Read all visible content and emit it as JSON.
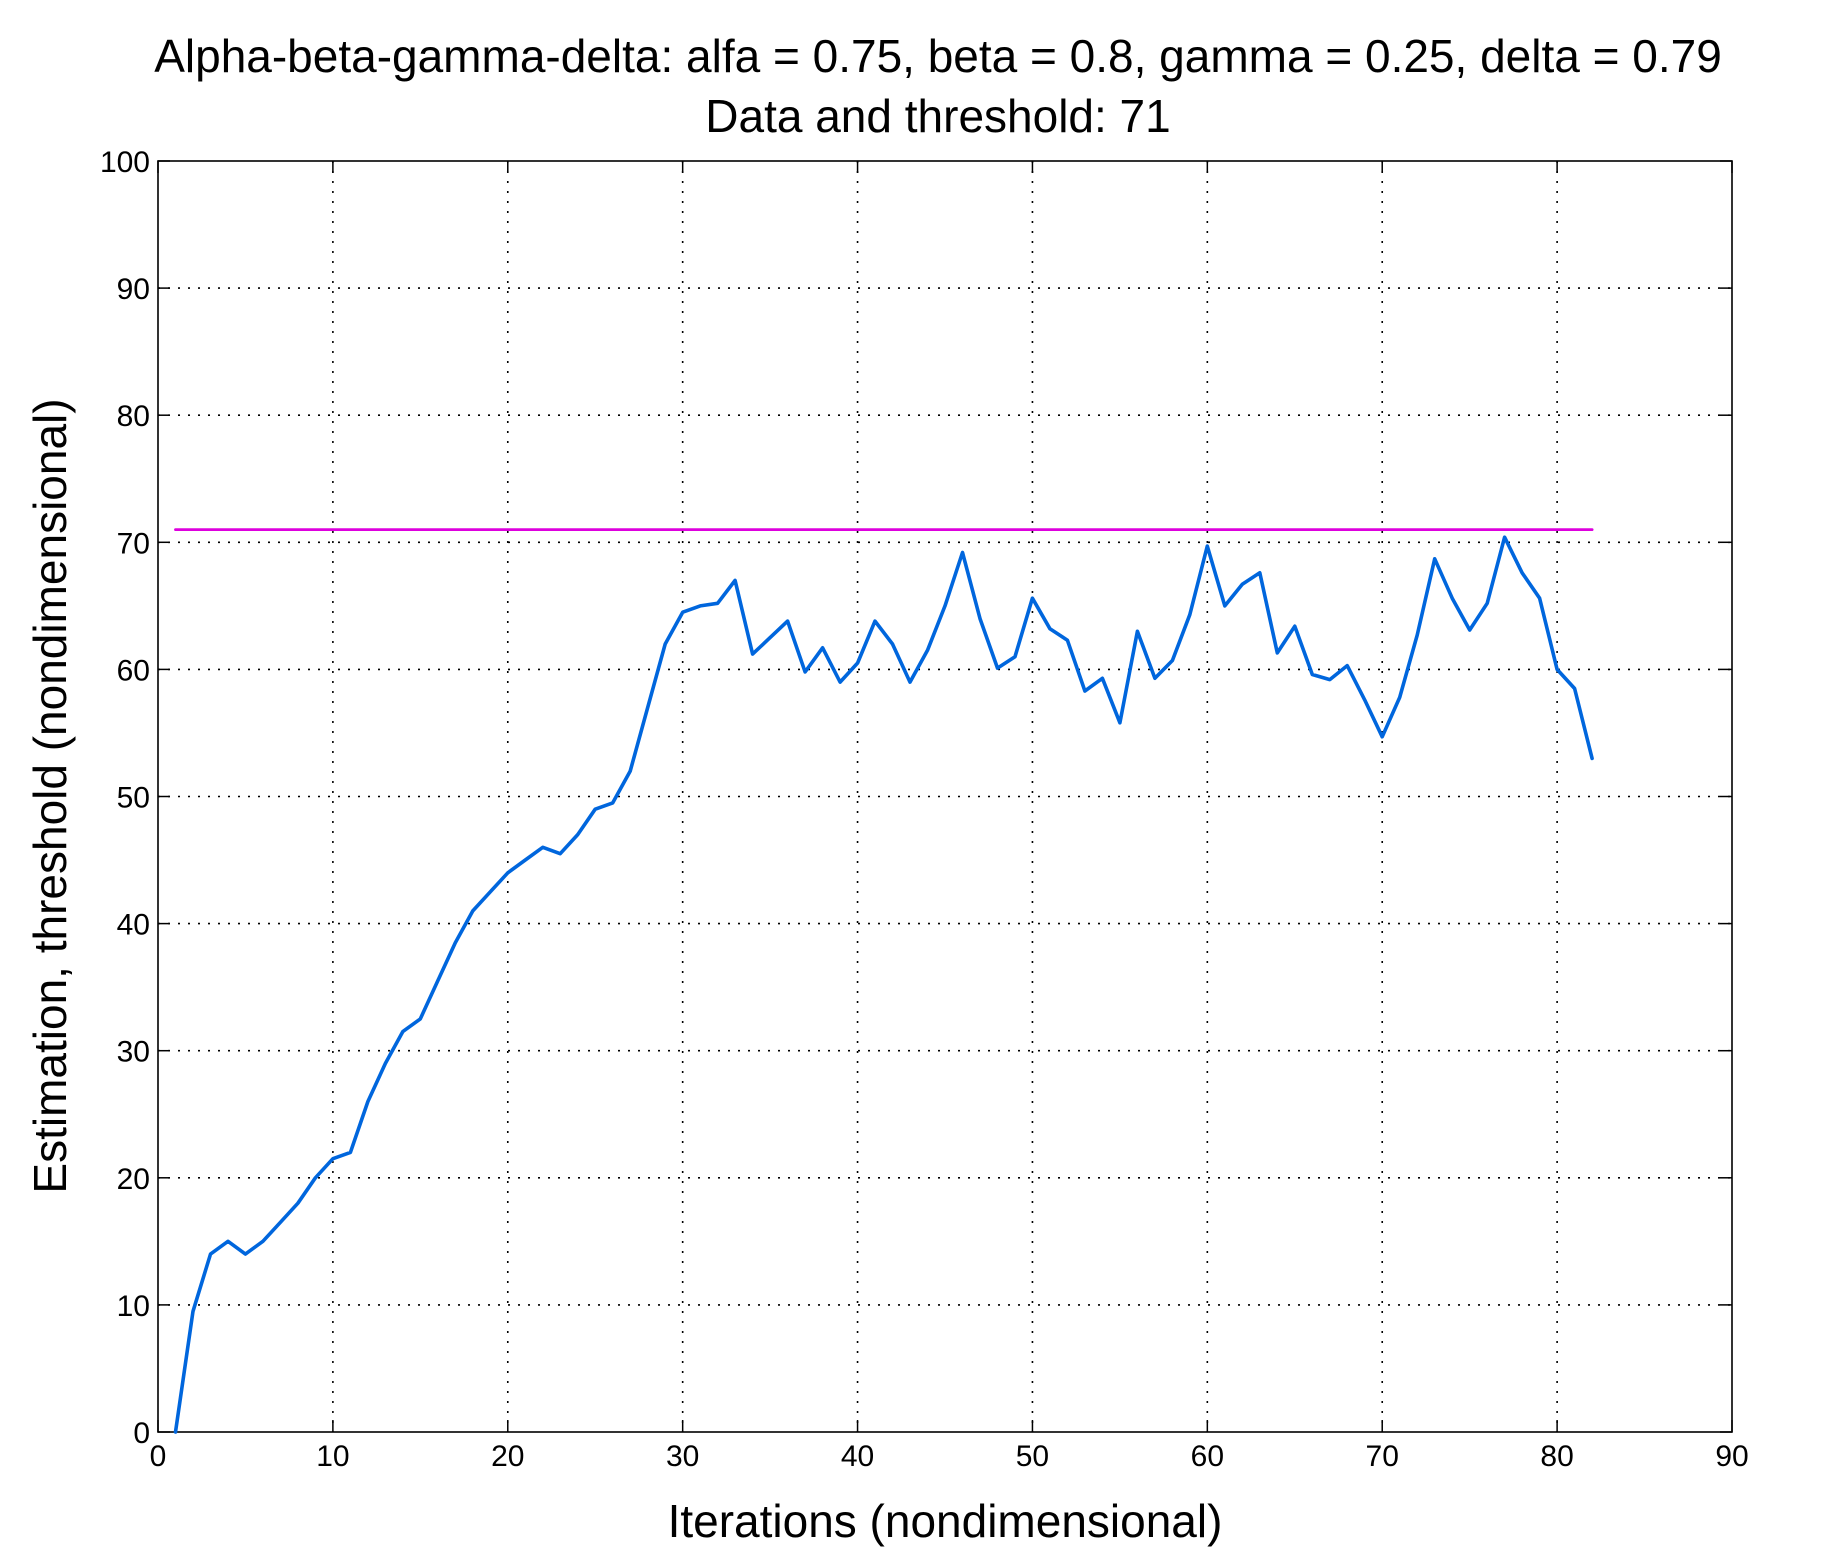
{
  "chart_data": {
    "type": "line",
    "title": "Alpha-beta-gamma-delta: alfa = 0.75, beta = 0.8, gamma = 0.25, delta = 0.79",
    "subtitle": "Data and threshold: 71",
    "xlabel": "Iterations (nondimensional)",
    "ylabel": "Estimation, threshold (nondimensional)",
    "xlim": [
      0,
      90
    ],
    "ylim": [
      0,
      100
    ],
    "xticks": [
      "0",
      "10",
      "20",
      "30",
      "40",
      "50",
      "60",
      "70",
      "80",
      "90"
    ],
    "yticks": [
      "0",
      "10",
      "20",
      "30",
      "40",
      "50",
      "60",
      "70",
      "80",
      "90",
      "100"
    ],
    "grid": true,
    "legend": "none",
    "series": [
      {
        "color": "#0066dd",
        "x": [
          1,
          2,
          3,
          4,
          5,
          6,
          7,
          8,
          9,
          10,
          11,
          12,
          13,
          14,
          15,
          16,
          17,
          18,
          19,
          20,
          21,
          22,
          23,
          24,
          25,
          26,
          27,
          28,
          29,
          30,
          31,
          32,
          33,
          34,
          35,
          36,
          37,
          38,
          39,
          40,
          41,
          42,
          43,
          44,
          45,
          46,
          47,
          48,
          49,
          50,
          51,
          52,
          53,
          54,
          55,
          56,
          57,
          58,
          59,
          60,
          61,
          62,
          63,
          64,
          65,
          66,
          67,
          68,
          69,
          70,
          71,
          72,
          73,
          74,
          75,
          76,
          77,
          78,
          79,
          80,
          81,
          82
        ],
        "y": [
          0,
          9.5,
          14,
          15,
          14,
          15,
          16.5,
          18,
          20,
          21.5,
          22,
          26,
          29,
          31.5,
          32.5,
          35.5,
          38.5,
          41,
          42.5,
          44,
          45,
          46,
          45.5,
          47,
          49,
          49.5,
          52,
          57,
          62,
          64.5,
          65,
          65.2,
          67,
          61.2,
          62.5,
          63.8,
          59.8,
          61.7,
          59,
          60.5,
          63.8,
          62,
          59,
          61.5,
          65,
          69.2,
          64,
          60.1,
          61,
          65.6,
          63.2,
          62.3,
          58.3,
          59.3,
          55.8,
          63,
          59.3,
          60.7,
          64.3,
          69.7,
          65,
          66.7,
          67.6,
          61.3,
          63.4,
          59.6,
          59.2,
          60.3,
          57.6,
          54.7,
          57.8,
          62.7,
          68.7,
          65.6,
          63.1,
          65.2,
          70.4,
          67.6,
          65.6,
          60,
          58.5,
          53
        ]
      },
      {
        "color": "#dd00dd",
        "x": [
          1,
          82
        ],
        "y": [
          71,
          71
        ]
      }
    ]
  }
}
